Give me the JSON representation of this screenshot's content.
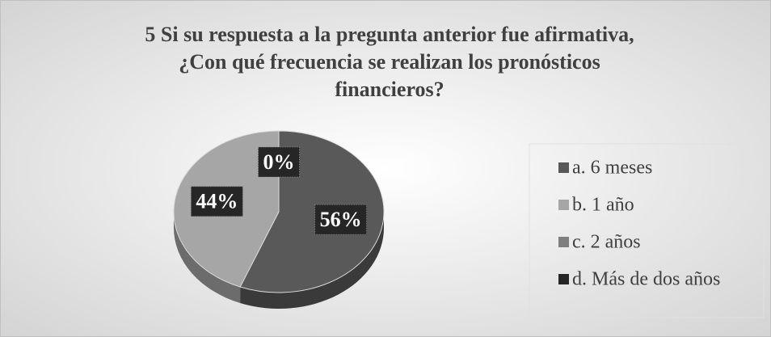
{
  "chart_data": {
    "type": "pie",
    "title": [
      "5 Si su respuesta a la pregunta anterior fue afirmativa,",
      "¿Con qué frecuencia se realizan los pronósticos",
      "financieros?"
    ],
    "categories": [
      "a. 6 meses",
      "b. 1 año",
      "c. 2 años",
      "d. Más de dos años"
    ],
    "values": [
      56,
      44,
      0,
      0
    ],
    "value_labels": [
      "56%",
      "44%",
      "0%",
      null
    ],
    "colors": [
      "#595959",
      "#a6a6a6",
      "#7f7f7f",
      "#262626"
    ],
    "legend": "right"
  }
}
